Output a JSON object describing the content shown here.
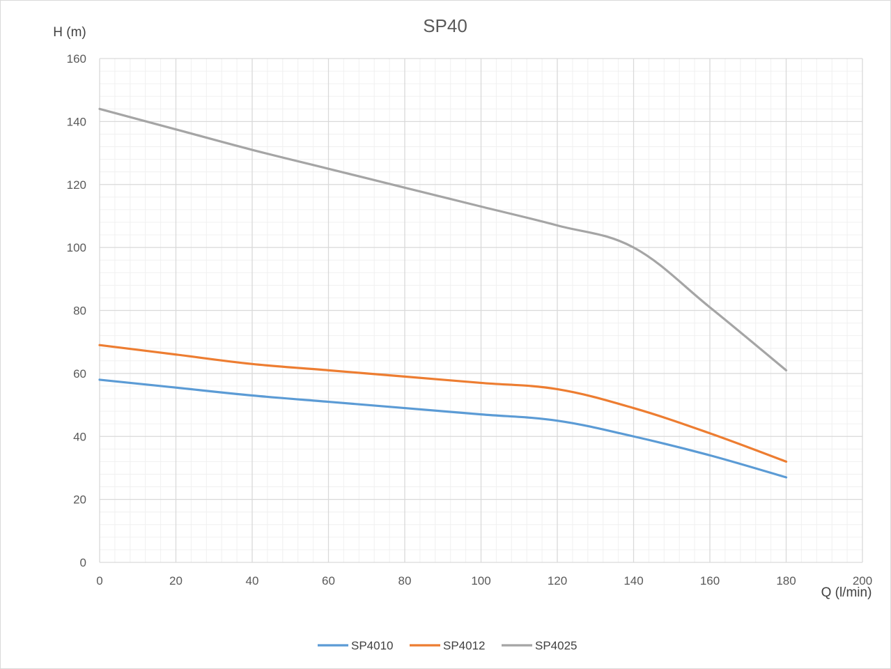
{
  "chart_data": {
    "type": "line",
    "title": "SP40",
    "xlabel": "Q (l/min)",
    "ylabel": "H (m)",
    "xlim": [
      0,
      200
    ],
    "ylim": [
      0,
      160
    ],
    "x_ticks": [
      "0",
      "20",
      "40",
      "60",
      "80",
      "100",
      "120",
      "140",
      "160",
      "180",
      "200"
    ],
    "y_ticks": [
      "0",
      "20",
      "40",
      "60",
      "80",
      "100",
      "120",
      "140",
      "160"
    ],
    "grid": true,
    "minor_grid": true,
    "legend_position": "bottom",
    "series": [
      {
        "name": "SP4010",
        "color": "#5b9bd5",
        "x": [
          0,
          20,
          40,
          60,
          80,
          100,
          120,
          140,
          160,
          180
        ],
        "y": [
          58,
          55.5,
          53,
          51,
          49,
          47,
          45,
          40,
          34,
          27
        ]
      },
      {
        "name": "SP4012",
        "color": "#ed7d31",
        "x": [
          0,
          20,
          40,
          60,
          80,
          100,
          120,
          140,
          160,
          180
        ],
        "y": [
          69,
          66,
          63,
          61,
          59,
          57,
          55,
          49,
          41,
          32
        ]
      },
      {
        "name": "SP4025",
        "color": "#a5a5a5",
        "x": [
          0,
          20,
          40,
          60,
          80,
          100,
          120,
          140,
          160,
          180
        ],
        "y": [
          144,
          137.5,
          131,
          125,
          119,
          113,
          107,
          100,
          81,
          61
        ]
      }
    ]
  }
}
